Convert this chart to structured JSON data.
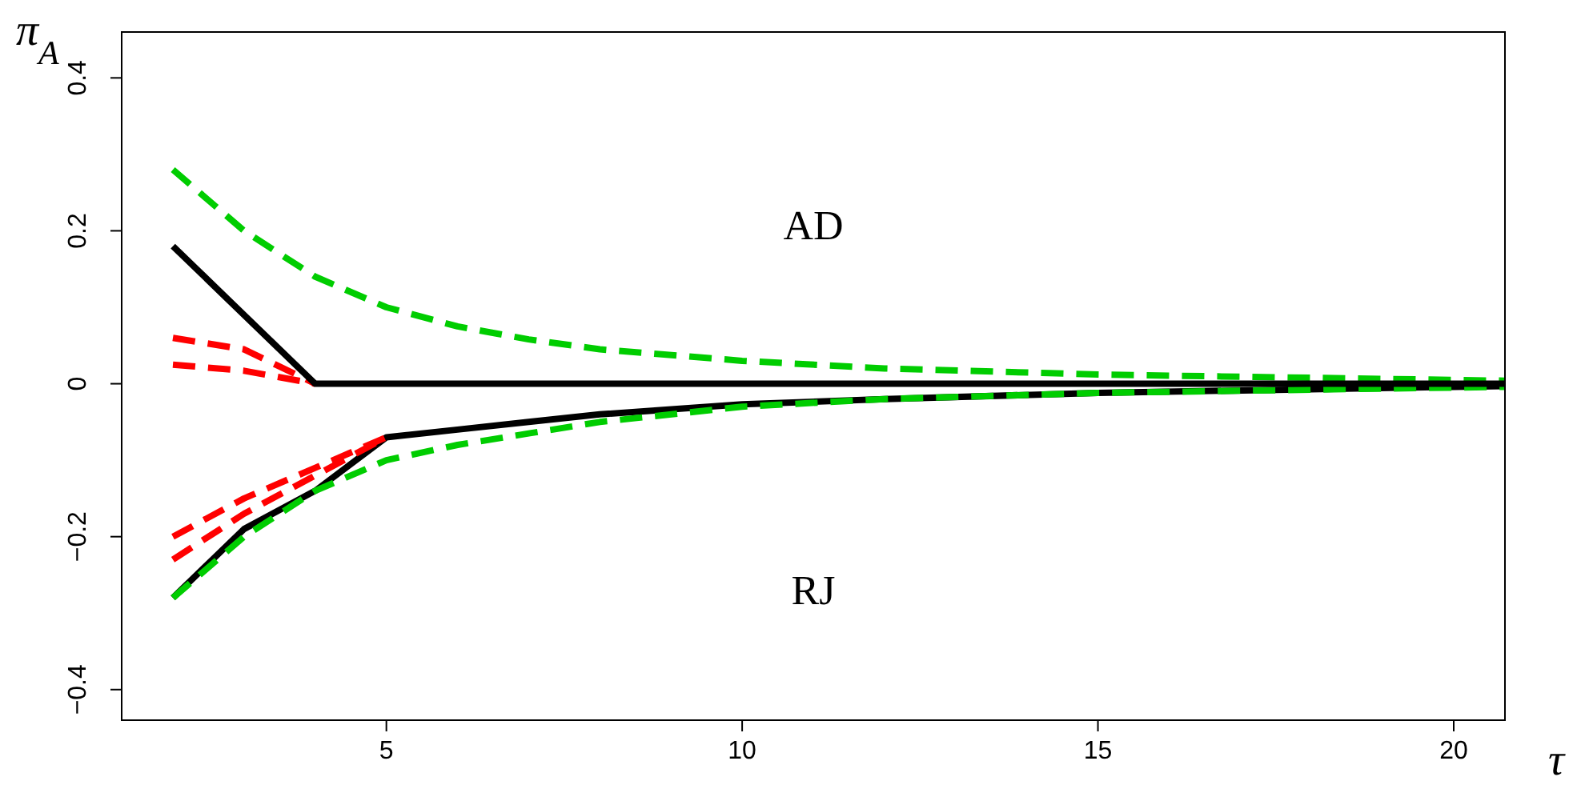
{
  "chart_data": {
    "type": "line",
    "xlabel": "τ",
    "ylabel": "π$_{A}$",
    "xlim": [
      1.28,
      20.72
    ],
    "ylim": [
      -0.44,
      0.46
    ],
    "xticks": [
      5,
      10,
      15,
      20
    ],
    "yticks": [
      -0.4,
      -0.2,
      0.0,
      0.2,
      0.4
    ],
    "grid": false,
    "annotations": [
      "AD",
      "RJ"
    ],
    "series": [
      {
        "color": "#000000",
        "line_style": "solid",
        "x": [
          2,
          3,
          4,
          5,
          6,
          7,
          8,
          10,
          12,
          15,
          20,
          20.72
        ],
        "values": [
          -0.28,
          -0.19,
          -0.14,
          -0.07,
          -0.06,
          -0.05,
          -0.04,
          -0.027,
          -0.02,
          -0.012,
          -0.004,
          -0.003
        ]
      },
      {
        "color": "#00cd00",
        "line_style": "dashed",
        "x": [
          2,
          3,
          4,
          5,
          6,
          7,
          8,
          10,
          12,
          15,
          20,
          20.72
        ],
        "values": [
          0.28,
          0.2,
          0.14,
          0.1,
          0.075,
          0.058,
          0.045,
          0.03,
          0.02,
          0.012,
          0.005,
          0.004
        ]
      },
      {
        "color": "#00cd00",
        "line_style": "dashed",
        "x": [
          2,
          3,
          4,
          5,
          6,
          7,
          8,
          10,
          12,
          15,
          20,
          20.72
        ],
        "values": [
          -0.28,
          -0.2,
          -0.14,
          -0.1,
          -0.08,
          -0.065,
          -0.05,
          -0.03,
          -0.02,
          -0.012,
          -0.005,
          -0.004
        ]
      },
      {
        "color": "#ff0000",
        "line_style": "dashed",
        "x": [
          2,
          3,
          4
        ],
        "values": [
          0.06,
          0.045,
          0
        ]
      },
      {
        "color": "#ff0000",
        "line_style": "dashed",
        "x": [
          2,
          3,
          4
        ],
        "values": [
          0.025,
          0.017,
          0
        ]
      },
      {
        "color": "#ff0000",
        "line_style": "dashed",
        "x": [
          2,
          3,
          4,
          5
        ],
        "values": [
          -0.2,
          -0.15,
          -0.11,
          -0.07
        ]
      },
      {
        "color": "#ff0000",
        "line_style": "dashed",
        "x": [
          2,
          3,
          4,
          5
        ],
        "values": [
          -0.23,
          -0.17,
          -0.12,
          -0.07
        ]
      },
      {
        "color": "#000000",
        "line_style": "solid",
        "x": [
          2,
          3,
          4,
          20.72
        ],
        "values": [
          0.18,
          0.09,
          0,
          0
        ]
      }
    ]
  }
}
